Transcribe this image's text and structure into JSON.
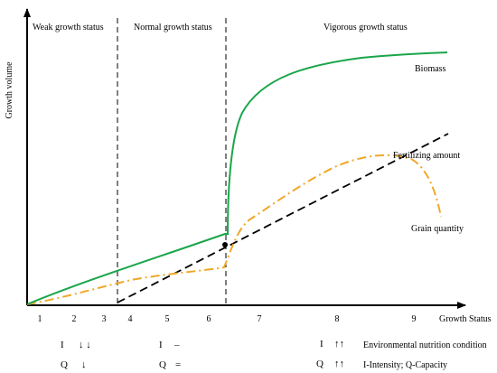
{
  "axes": {
    "y_label": "Growth volume",
    "x_label": "Growth Status"
  },
  "zones": [
    {
      "label": "Weak growth status"
    },
    {
      "label": "Normal growth status"
    },
    {
      "label": "Vigorous growth status"
    }
  ],
  "curves": {
    "biomass": "Biomass",
    "fertilizing": "Fertilizing amount",
    "grain": "Grain quantity"
  },
  "x_ticks": [
    "1",
    "2",
    "3",
    "4",
    "5",
    "6",
    "7",
    "8",
    "9"
  ],
  "conditions": {
    "weak": {
      "i_label": "I",
      "i_symbol": "↓ ↓",
      "q_label": "Q",
      "q_symbol": "↓"
    },
    "normal": {
      "i_label": "I",
      "i_symbol": "–",
      "q_label": "Q",
      "q_symbol": "="
    },
    "vigorous": {
      "i_label": "I",
      "i_symbol": "↑↑",
      "q_label": "Q",
      "q_symbol": "↑↑"
    }
  },
  "legend": {
    "environment": "Environmental nutrition condition",
    "definition": "I-Intensity; Q-Capacity"
  },
  "colors": {
    "biomass": "#1aa64a",
    "grain": "#f0a82a",
    "fertilizing": "#000000",
    "axis": "#000000"
  }
}
